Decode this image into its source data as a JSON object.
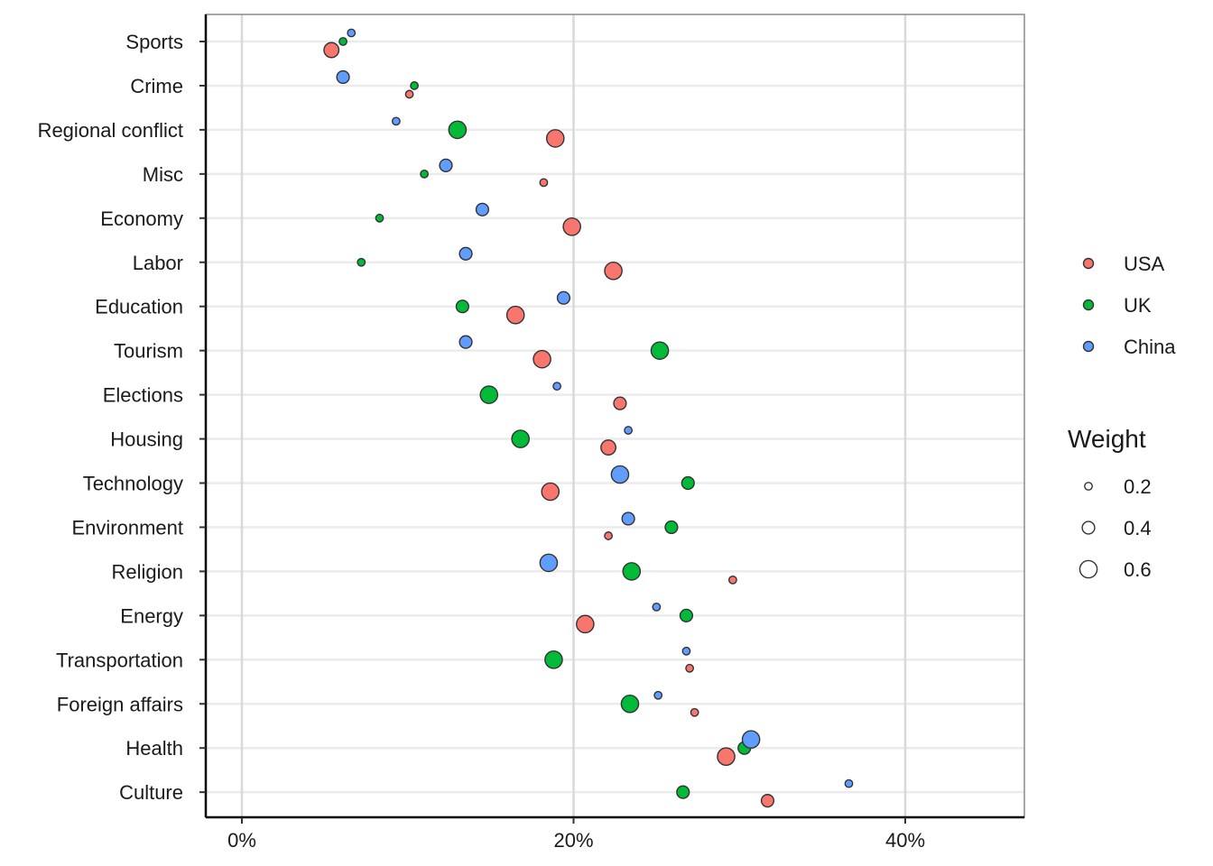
{
  "chart_data": {
    "type": "scatter",
    "title": "",
    "xlabel": "",
    "ylabel": "",
    "xlim": [
      -0.02,
      0.47
    ],
    "x_ticks": [
      0,
      0.2,
      0.4
    ],
    "x_tick_labels": [
      "0%",
      "20%",
      "40%"
    ],
    "grid": true,
    "legend_position": "right",
    "categories": [
      "Sports",
      "Crime",
      "Regional conflict",
      "Misc",
      "Economy",
      "Labor",
      "Education",
      "Tourism",
      "Elections",
      "Housing",
      "Technology",
      "Environment",
      "Religion",
      "Energy",
      "Transportation",
      "Foreign affairs",
      "Health",
      "Culture"
    ],
    "series": [
      {
        "name": "USA",
        "color": "#F8766D",
        "values": [
          0.054,
          0.101,
          0.189,
          0.182,
          0.199,
          0.224,
          0.165,
          0.181,
          0.228,
          0.221,
          0.186,
          0.221,
          0.296,
          0.207,
          0.27,
          0.273,
          0.292,
          0.317
        ],
        "weights": [
          0.5,
          0.2,
          0.6,
          0.2,
          0.6,
          0.6,
          0.6,
          0.6,
          0.4,
          0.5,
          0.6,
          0.2,
          0.2,
          0.6,
          0.2,
          0.2,
          0.6,
          0.4
        ]
      },
      {
        "name": "UK",
        "color": "#00BA38",
        "values": [
          0.061,
          0.104,
          0.13,
          0.11,
          0.083,
          0.072,
          0.133,
          0.252,
          0.149,
          0.168,
          0.269,
          0.259,
          0.235,
          0.268,
          0.188,
          0.234,
          0.303,
          0.266
        ],
        "weights": [
          0.2,
          0.2,
          0.6,
          0.2,
          0.2,
          0.2,
          0.4,
          0.6,
          0.6,
          0.6,
          0.4,
          0.4,
          0.6,
          0.4,
          0.6,
          0.6,
          0.4,
          0.4
        ]
      },
      {
        "name": "China",
        "color": "#619CFF",
        "values": [
          0.066,
          0.061,
          0.093,
          0.123,
          0.145,
          0.135,
          0.194,
          0.135,
          0.19,
          0.233,
          0.228,
          0.233,
          0.185,
          0.25,
          0.268,
          0.251,
          0.307,
          0.366
        ],
        "weights": [
          0.2,
          0.4,
          0.2,
          0.4,
          0.4,
          0.4,
          0.4,
          0.4,
          0.2,
          0.2,
          0.6,
          0.4,
          0.6,
          0.2,
          0.2,
          0.2,
          0.6,
          0.2
        ]
      }
    ],
    "size_legend": {
      "title": "Weight",
      "values": [
        0.2,
        0.4,
        0.6
      ],
      "labels": [
        "0.2",
        "0.4",
        "0.6"
      ]
    }
  }
}
